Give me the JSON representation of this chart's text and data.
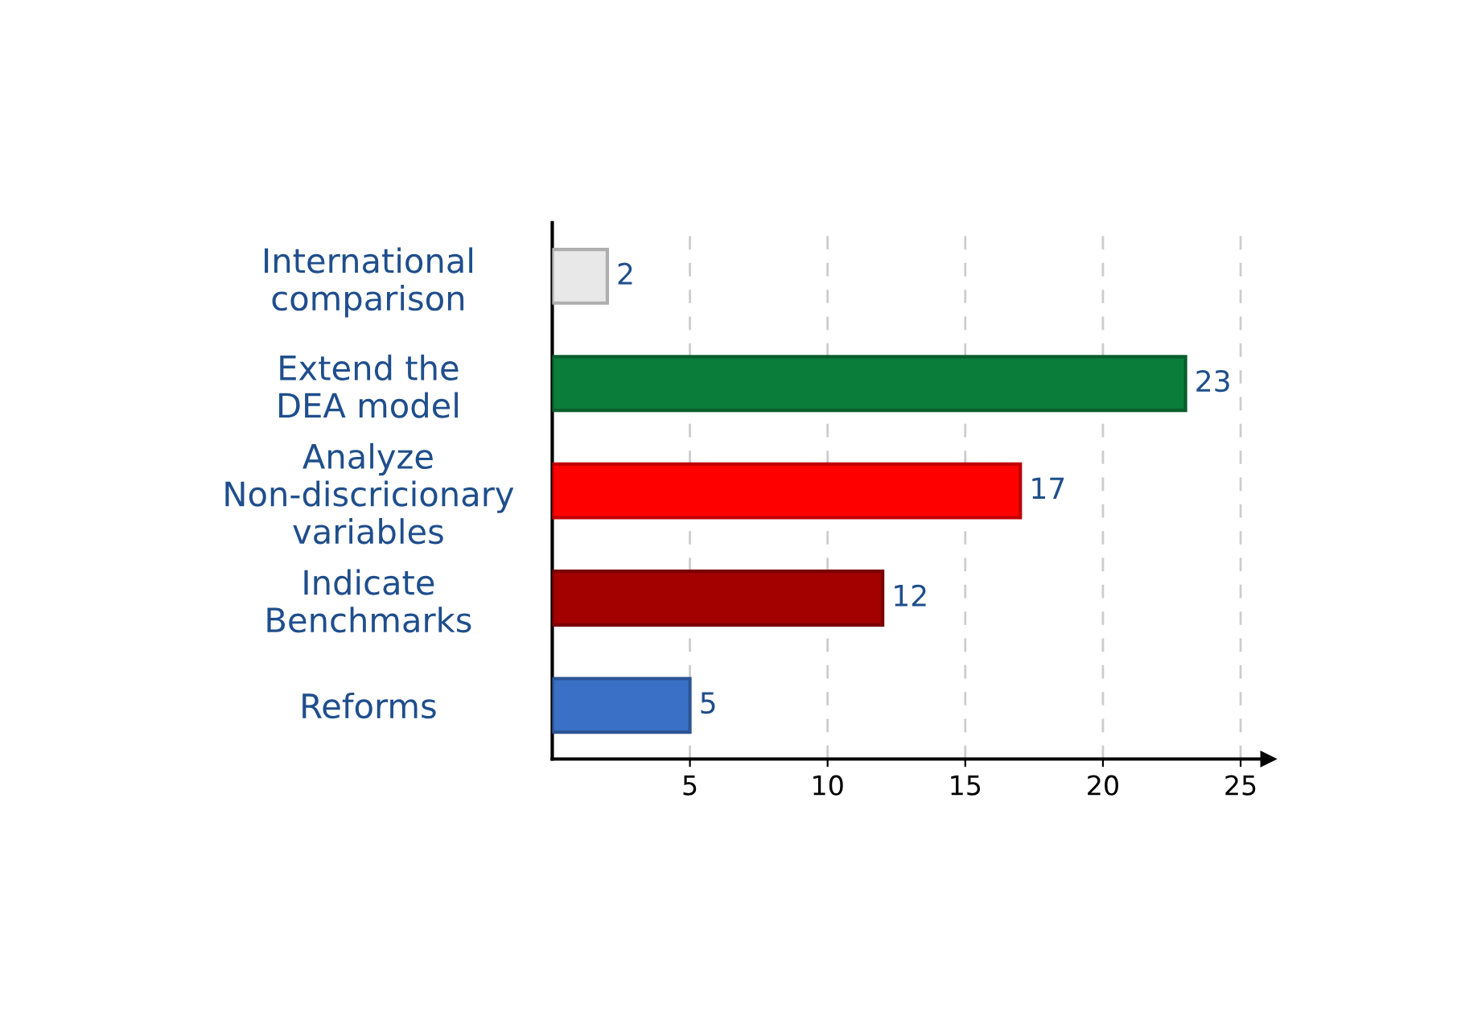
{
  "chart_data": {
    "type": "bar",
    "orientation": "horizontal",
    "categories": [
      "International\ncomparison",
      "Extend the\nDEA model",
      "Analyze\nNon-discricionary\nvariables",
      "Indicate\nBenchmarks",
      "Reforms"
    ],
    "values": [
      2,
      23,
      17,
      12,
      5
    ],
    "colors": [
      "#e8e8e8",
      "#0b7d3b",
      "#ff0000",
      "#a30000",
      "#3a70c6"
    ],
    "xlim": [
      0,
      26
    ],
    "xticks": [
      5,
      10,
      15,
      20,
      25
    ],
    "grid": "x",
    "data_labels": true
  }
}
